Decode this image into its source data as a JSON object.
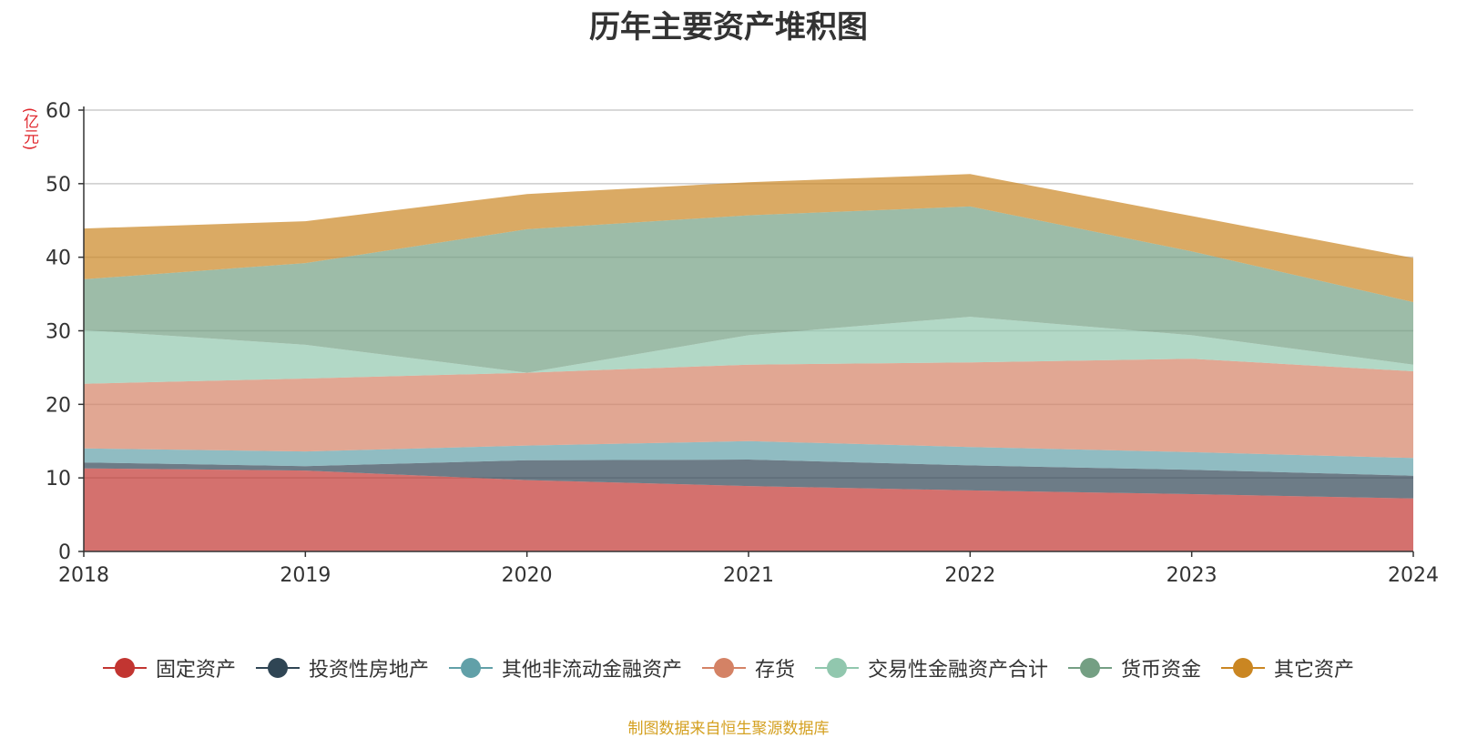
{
  "chart_data": {
    "type": "area",
    "stacked": true,
    "title": "历年主要资产堆积图",
    "unit_label": "(亿元)",
    "x": [
      "2018",
      "2019",
      "2020",
      "2021",
      "2022",
      "2023",
      "2024"
    ],
    "ylim": [
      0,
      60
    ],
    "yticks": [
      "0",
      "10",
      "20",
      "30",
      "40",
      "50",
      "60"
    ],
    "grid": true,
    "legend_position": "bottom",
    "series": [
      {
        "name": "固定资产",
        "color": "#c23531",
        "values": [
          11.3,
          11.0,
          9.7,
          8.9,
          8.3,
          7.8,
          7.2
        ]
      },
      {
        "name": "投资性房地产",
        "color": "#2f4554",
        "values": [
          0.8,
          0.6,
          2.7,
          3.6,
          3.4,
          3.3,
          3.1
        ]
      },
      {
        "name": "其他非流动金融资产",
        "color": "#61a0a8",
        "values": [
          1.9,
          2.0,
          2.0,
          2.5,
          2.5,
          2.4,
          2.4
        ]
      },
      {
        "name": "存货",
        "color": "#d48265",
        "values": [
          8.8,
          9.9,
          9.9,
          10.4,
          11.5,
          12.7,
          11.8
        ]
      },
      {
        "name": "交易性金融资产合计",
        "color": "#91c7ae",
        "values": [
          7.3,
          4.6,
          0.0,
          4.0,
          6.2,
          3.2,
          0.9
        ]
      },
      {
        "name": "货币资金",
        "color": "#749f83",
        "values": [
          6.9,
          11.1,
          19.5,
          16.3,
          15.0,
          11.4,
          8.5
        ]
      },
      {
        "name": "其它资产",
        "color": "#ca8622",
        "values": [
          6.9,
          5.7,
          4.8,
          4.5,
          4.4,
          4.8,
          6.0
        ]
      }
    ]
  },
  "source": "制图数据来自恒生聚源数据库"
}
